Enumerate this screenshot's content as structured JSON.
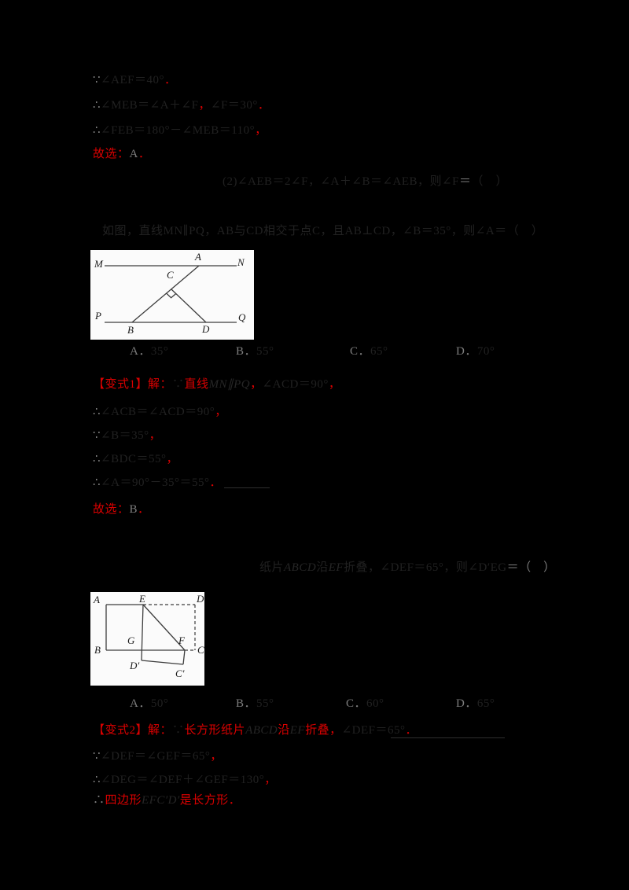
{
  "page": {
    "background": "#000000",
    "text_color": "#212121",
    "accent_red": "#d90000"
  },
  "lines": {
    "t1": [
      {
        "t": "∵",
        "c": "lt"
      },
      {
        "t": "∠AEF＝40°",
        "c": "d"
      },
      {
        "t": "．",
        "c": "r"
      }
    ],
    "t2": [
      {
        "t": "∴",
        "c": "lt"
      },
      {
        "t": "∠MEB＝∠A＋∠F",
        "c": "d"
      },
      {
        "t": "，",
        "c": "r"
      },
      {
        "t": "∠F＝30°",
        "c": "d"
      },
      {
        "t": "．",
        "c": "r"
      }
    ],
    "t3": [
      {
        "t": "∴",
        "c": "lt"
      },
      {
        "t": "∠FEB＝180°－∠MEB＝110°",
        "c": "d"
      },
      {
        "t": "，",
        "c": "r"
      }
    ],
    "t4": [
      {
        "t": "故选：",
        "c": "r"
      },
      {
        "t": "A",
        "c": "lt"
      },
      {
        "t": "．",
        "c": "r"
      }
    ],
    "p1center": [
      {
        "t": "(2)∠AEB＝2∠F，∠A＋∠B＝∠AEB，则∠F",
        "c": "d"
      },
      {
        "t": "＝",
        "c": "lt"
      },
      {
        "t": "（　）",
        "c": "d"
      }
    ],
    "p1stmt": [
      {
        "t": "如图，直线MN∥PQ，AB与CD相交于点C，且AB⊥CD，∠B＝35°，则∠A＝（　）",
        "c": "d"
      }
    ],
    "o1a": [
      {
        "t": "A．",
        "c": "lt"
      },
      {
        "t": "35°",
        "c": "d"
      }
    ],
    "o1b": [
      {
        "t": "B．",
        "c": "lt"
      },
      {
        "t": "55°",
        "c": "d"
      }
    ],
    "o1c": [
      {
        "t": "C．",
        "c": "lt"
      },
      {
        "t": "65°",
        "c": "d"
      }
    ],
    "o1d": [
      {
        "t": "D．",
        "c": "lt"
      },
      {
        "t": "70°",
        "c": "d"
      }
    ],
    "s1": [
      {
        "t": "【变式1】",
        "c": "r"
      },
      {
        "t": "解：",
        "c": "r"
      },
      {
        "t": "∵",
        "c": "d"
      },
      {
        "t": "直线",
        "c": "r"
      },
      {
        "t": "MN∥PQ",
        "c": "di"
      },
      {
        "t": "，",
        "c": "r"
      },
      {
        "t": "∠ACD＝90°",
        "c": "d"
      },
      {
        "t": "，",
        "c": "r"
      }
    ],
    "s2": [
      {
        "t": "∴",
        "c": "lt"
      },
      {
        "t": "∠ACB＝∠ACD＝90°",
        "c": "d"
      },
      {
        "t": "，",
        "c": "r"
      }
    ],
    "s3": [
      {
        "t": "∵",
        "c": "lt"
      },
      {
        "t": "∠B＝35°",
        "c": "d"
      },
      {
        "t": "，",
        "c": "r"
      }
    ],
    "s4": [
      {
        "t": "∴",
        "c": "lt"
      },
      {
        "t": "∠BDC＝55°",
        "c": "d"
      },
      {
        "t": "，",
        "c": "r"
      }
    ],
    "s5": [
      {
        "t": "∴",
        "c": "lt"
      },
      {
        "t": "∠A＝90°－35°＝55°",
        "c": "d"
      },
      {
        "t": "．",
        "c": "r"
      }
    ],
    "s6": [
      {
        "t": "故选：",
        "c": "r"
      },
      {
        "t": "B",
        "c": "lt"
      },
      {
        "t": "．",
        "c": "r"
      }
    ],
    "p2stmt": [
      {
        "t": "纸片",
        "c": "d"
      },
      {
        "t": "ABCD",
        "c": "di"
      },
      {
        "t": "沿",
        "c": "d"
      },
      {
        "t": "EF",
        "c": "di"
      },
      {
        "t": "折叠，∠DEF＝65°，则∠D′EG",
        "c": "d"
      },
      {
        "t": "＝（　）",
        "c": "lt"
      }
    ],
    "o2a": [
      {
        "t": "A．",
        "c": "lt"
      },
      {
        "t": "50°",
        "c": "d"
      }
    ],
    "o2b": [
      {
        "t": "B．",
        "c": "lt"
      },
      {
        "t": "55°",
        "c": "d"
      }
    ],
    "o2c": [
      {
        "t": "C．",
        "c": "lt"
      },
      {
        "t": "60°",
        "c": "d"
      }
    ],
    "o2d": [
      {
        "t": "D．",
        "c": "lt"
      },
      {
        "t": "65°",
        "c": "d"
      }
    ],
    "v1": [
      {
        "t": "【变式2】",
        "c": "r"
      },
      {
        "t": "解：",
        "c": "r"
      },
      {
        "t": "∵",
        "c": "d"
      },
      {
        "t": "长方形纸片",
        "c": "r"
      },
      {
        "t": "ABCD",
        "c": "di"
      },
      {
        "t": "沿",
        "c": "r"
      },
      {
        "t": "EF",
        "c": "di"
      },
      {
        "t": "折叠，",
        "c": "r"
      },
      {
        "t": "∠DEF＝65°",
        "c": "d"
      },
      {
        "t": "．",
        "c": "r"
      }
    ],
    "v2": [
      {
        "t": "∵",
        "c": "lt"
      },
      {
        "t": "∠DEF＝∠GEF＝65°",
        "c": "d"
      },
      {
        "t": "，",
        "c": "r"
      }
    ],
    "v3": [
      {
        "t": "∴",
        "c": "lt"
      },
      {
        "t": "∠DEG＝∠DEF＋∠GEF＝130°",
        "c": "d"
      },
      {
        "t": "，",
        "c": "r"
      }
    ],
    "v4": [
      {
        "t": "∴",
        "c": "lt"
      },
      {
        "t": "四边形",
        "c": "r"
      },
      {
        "t": "EFC′D′",
        "c": "di"
      },
      {
        "t": "是长方形．",
        "c": "r"
      }
    ]
  },
  "figure1": {
    "labels": {
      "M": "M",
      "N": "N",
      "P": "P",
      "Q": "Q",
      "A": "A",
      "B": "B",
      "C": "C",
      "D": "D"
    }
  },
  "figure2": {
    "labels": {
      "A": "A",
      "B": "B",
      "C": "C",
      "D": "D",
      "E": "E",
      "F": "F",
      "G": "G",
      "Dp": "D′",
      "Cp": "C′"
    }
  }
}
